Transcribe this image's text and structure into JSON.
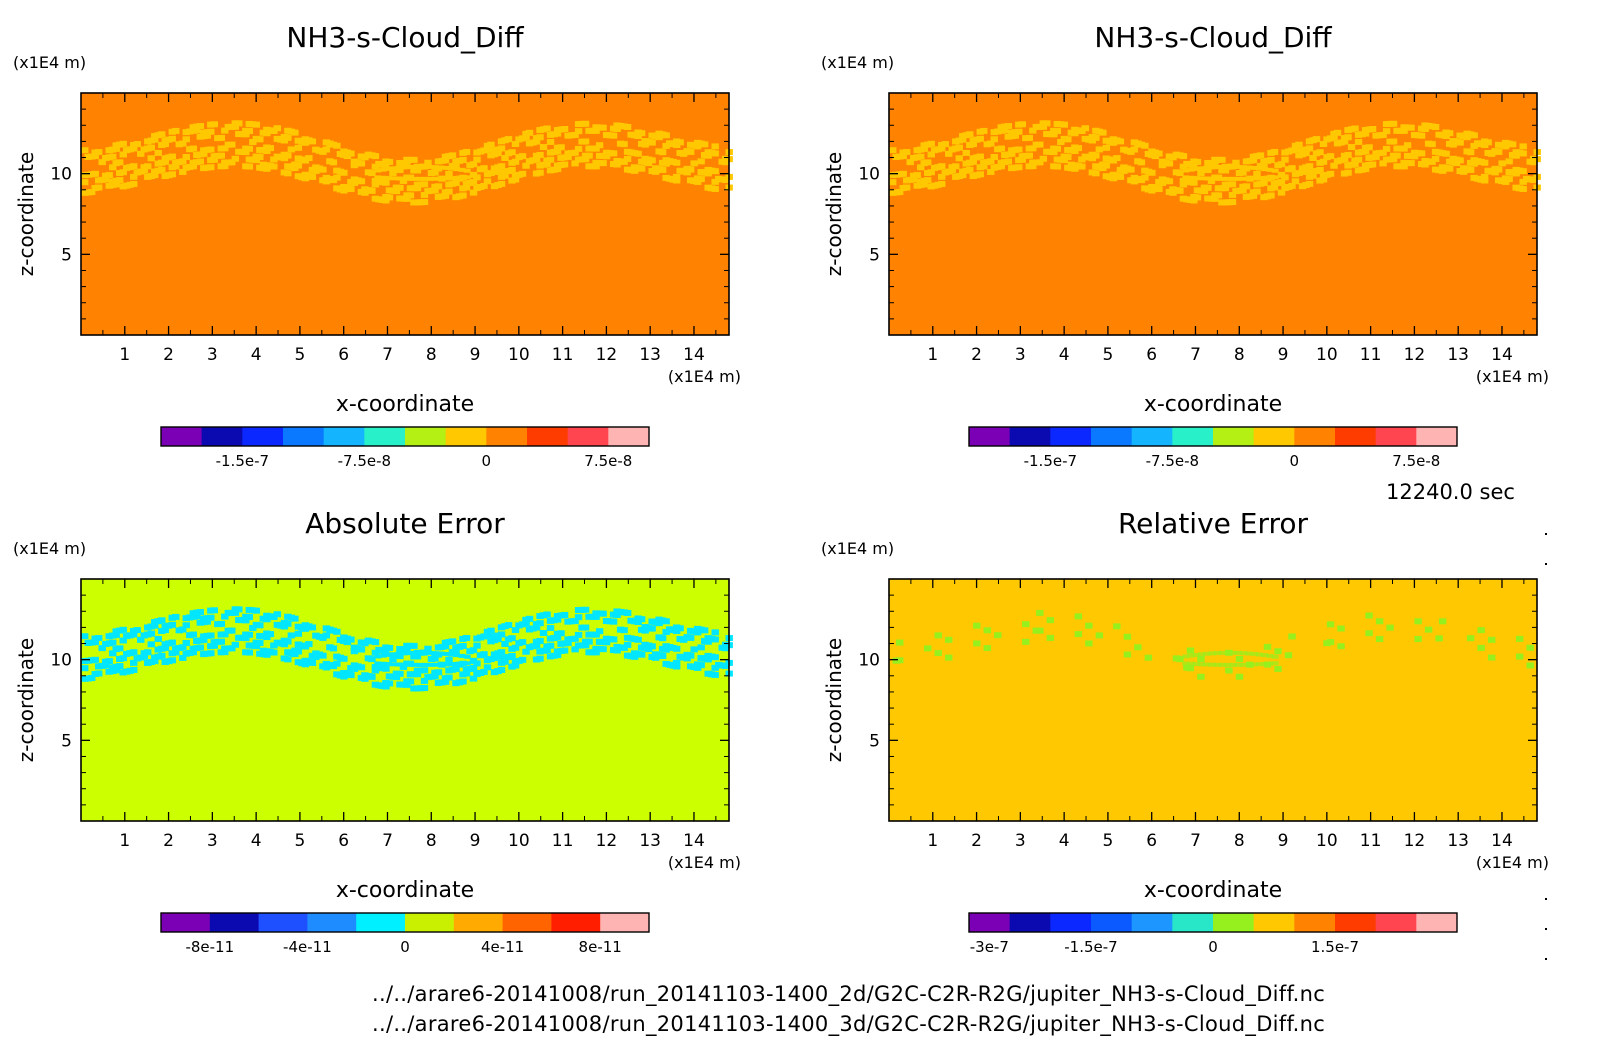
{
  "time_label": "12240.0 sec",
  "footer": {
    "path_2d": "../../arare6-20141008/run_20141103-1400_2d/G2C-C2R-R2G/jupiter_NH3-s-Cloud_Diff.nc",
    "path_3d": "../../arare6-20141008/run_20141103-1400_3d/G2C-C2R-R2G/jupiter_NH3-s-Cloud_Diff.nc"
  },
  "colormaps": {
    "diff": [
      "#7b00b5",
      "#0a0ab0",
      "#0a28ff",
      "#0a78ff",
      "#14b4ff",
      "#28f0c8",
      "#b4f014",
      "#ffc800",
      "#ff8200",
      "#ff3c00",
      "#ff4650",
      "#ffb4b4"
    ],
    "abs": [
      "#7b00b5",
      "#0a0ab0",
      "#1e50ff",
      "#1e8cff",
      "#00f0ff",
      "#c8f000",
      "#ffaa00",
      "#ff6400",
      "#ff1e00",
      "#ffb4b4"
    ],
    "rel": [
      "#7b00b5",
      "#0a0ab0",
      "#0a28ff",
      "#0a5aff",
      "#1e96ff",
      "#28e6c8",
      "#96f01e",
      "#ffc800",
      "#ff8200",
      "#ff3c00",
      "#ff4650",
      "#ffb4b4"
    ]
  },
  "chart_data": [
    {
      "type": "heatmap",
      "title": "NH3-s-Cloud_Diff",
      "xlabel": "x-coordinate",
      "ylabel": "z-coordinate",
      "x_unit": "(x1E4 m)",
      "z_unit": "(x1E4 m)",
      "xlim": [
        0,
        14.8
      ],
      "zlim": [
        0,
        15
      ],
      "x_ticks": [
        1,
        2,
        3,
        4,
        5,
        6,
        7,
        8,
        9,
        10,
        11,
        12,
        13,
        14
      ],
      "z_ticks": [
        5,
        10
      ],
      "background": "#ff8200",
      "pattern": "band",
      "band_color": "#ffc800",
      "colorbar": {
        "colormap": "diff",
        "ticks": [
          "-1.5e-7",
          "-7.5e-8",
          "0",
          "7.5e-8"
        ],
        "tick_bins": [
          2,
          5,
          8,
          11
        ]
      }
    },
    {
      "type": "heatmap",
      "title": "NH3-s-Cloud_Diff",
      "xlabel": "x-coordinate",
      "ylabel": "z-coordinate",
      "x_unit": "(x1E4 m)",
      "z_unit": "(x1E4 m)",
      "xlim": [
        0,
        14.8
      ],
      "zlim": [
        0,
        15
      ],
      "x_ticks": [
        1,
        2,
        3,
        4,
        5,
        6,
        7,
        8,
        9,
        10,
        11,
        12,
        13,
        14
      ],
      "z_ticks": [
        5,
        10
      ],
      "background": "#ff8200",
      "pattern": "band",
      "band_color": "#ffc800",
      "colorbar": {
        "colormap": "diff",
        "ticks": [
          "-1.5e-7",
          "-7.5e-8",
          "0",
          "7.5e-8"
        ],
        "tick_bins": [
          2,
          5,
          8,
          11
        ]
      }
    },
    {
      "type": "heatmap",
      "title": "Absolute Error",
      "xlabel": "x-coordinate",
      "ylabel": "z-coordinate",
      "x_unit": "(x1E4 m)",
      "z_unit": "(x1E4 m)",
      "xlim": [
        0,
        14.8
      ],
      "zlim": [
        0,
        15
      ],
      "x_ticks": [
        1,
        2,
        3,
        4,
        5,
        6,
        7,
        8,
        9,
        10,
        11,
        12,
        13,
        14
      ],
      "z_ticks": [
        5,
        10
      ],
      "background": "#ccff00",
      "pattern": "band",
      "band_color": "#00e6ff",
      "colorbar": {
        "colormap": "abs",
        "ticks": [
          "-8e-11",
          "-4e-11",
          "0",
          "4e-11",
          "8e-11"
        ],
        "tick_bins": [
          1,
          3,
          5,
          7,
          9
        ]
      }
    },
    {
      "type": "heatmap",
      "title": "Relative Error",
      "xlabel": "x-coordinate",
      "ylabel": "z-coordinate",
      "x_unit": "(x1E4 m)",
      "z_unit": "(x1E4 m)",
      "xlim": [
        0,
        14.8
      ],
      "zlim": [
        0,
        15
      ],
      "x_ticks": [
        1,
        2,
        3,
        4,
        5,
        6,
        7,
        8,
        9,
        10,
        11,
        12,
        13,
        14
      ],
      "z_ticks": [
        5,
        10
      ],
      "background": "#ffc800",
      "pattern": "sparse",
      "band_color": "#96f01e",
      "colorbar": {
        "colormap": "rel",
        "ticks": [
          "-3e-7",
          "-1.5e-7",
          "0",
          "1.5e-7"
        ],
        "tick_bins": [
          0.5,
          3,
          6,
          9
        ]
      }
    }
  ]
}
